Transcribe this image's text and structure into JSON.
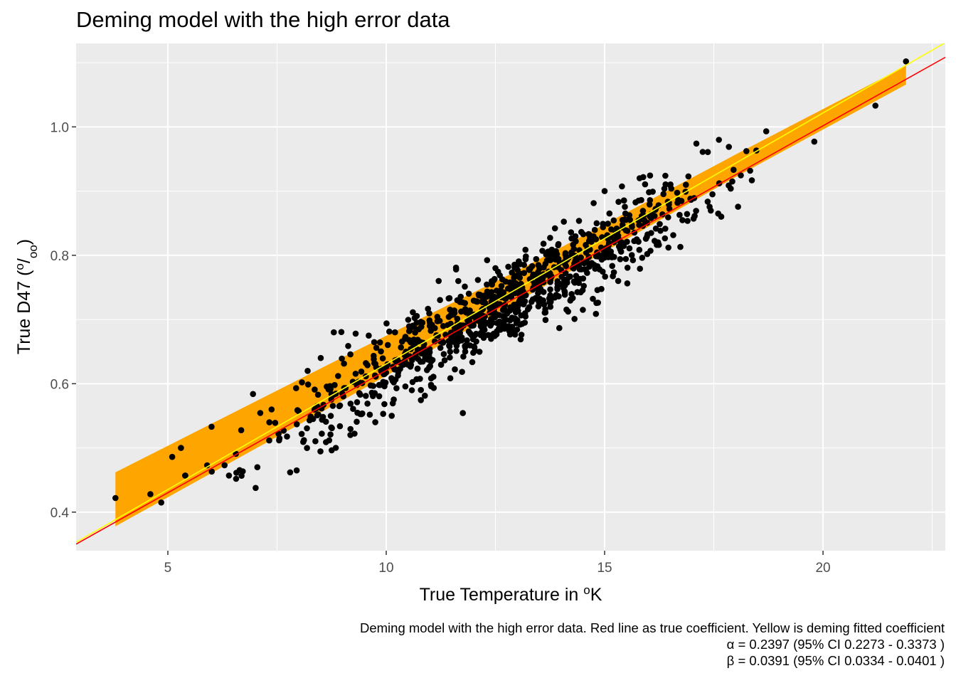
{
  "chart_data": {
    "type": "scatter",
    "title": "Deming model with the high error data",
    "xlabel": "True Temperature in °K",
    "ylabel": "True D47 (°/oo)",
    "xlim": [
      2.9,
      22.8
    ],
    "ylim": [
      0.34,
      1.13
    ],
    "x_ticks": [
      5,
      10,
      15,
      20
    ],
    "y_ticks": [
      0.4,
      0.6,
      0.8,
      1.0
    ],
    "x_tick_labels": [
      "5",
      "10",
      "15",
      "20"
    ],
    "y_tick_labels": [
      "0.4",
      "0.6",
      "0.8",
      "1.0"
    ],
    "grid": true,
    "background": "#ebebeb",
    "points": {
      "name": "",
      "color": "#000000",
      "count": 1000,
      "x_range": [
        3.8,
        21.9
      ],
      "selected_points": [
        {
          "x": 3.8,
          "y": 0.422
        },
        {
          "x": 4.6,
          "y": 0.428
        },
        {
          "x": 4.85,
          "y": 0.415
        },
        {
          "x": 5.1,
          "y": 0.486
        },
        {
          "x": 5.3,
          "y": 0.5
        },
        {
          "x": 5.4,
          "y": 0.457
        },
        {
          "x": 5.9,
          "y": 0.473
        },
        {
          "x": 6.0,
          "y": 0.533
        },
        {
          "x": 6.4,
          "y": 0.457
        },
        {
          "x": 7.05,
          "y": 0.47
        },
        {
          "x": 6.95,
          "y": 0.584
        },
        {
          "x": 7.8,
          "y": 0.462
        },
        {
          "x": 7.95,
          "y": 0.465
        },
        {
          "x": 8.2,
          "y": 0.62
        },
        {
          "x": 8.5,
          "y": 0.64
        },
        {
          "x": 8.8,
          "y": 0.68
        },
        {
          "x": 9.3,
          "y": 0.678
        },
        {
          "x": 9.6,
          "y": 0.675
        },
        {
          "x": 10.2,
          "y": 0.68
        },
        {
          "x": 11.6,
          "y": 0.778
        },
        {
          "x": 11.2,
          "y": 0.76
        },
        {
          "x": 12.5,
          "y": 0.78
        },
        {
          "x": 15.0,
          "y": 0.9
        },
        {
          "x": 15.8,
          "y": 0.92
        },
        {
          "x": 17.1,
          "y": 0.974
        },
        {
          "x": 18.7,
          "y": 0.993
        },
        {
          "x": 19.8,
          "y": 0.977
        },
        {
          "x": 21.2,
          "y": 1.033
        },
        {
          "x": 21.9,
          "y": 1.102
        },
        {
          "x": 17.6,
          "y": 0.865
        },
        {
          "x": 16.2,
          "y": 0.818
        },
        {
          "x": 14.4,
          "y": 0.758
        },
        {
          "x": 12.0,
          "y": 0.675
        }
      ]
    },
    "lines": [
      {
        "name": "",
        "color": "#ff0000",
        "intercept": 0.2397,
        "slope": 0.0381
      },
      {
        "name": "",
        "color": "#ffff00",
        "intercept": 0.2397,
        "slope": 0.0391
      }
    ],
    "ribbon": {
      "color": "#ffa500",
      "x_range": [
        3.8,
        21.9
      ],
      "lower": [
        [
          3.8,
          0.378
        ],
        [
          9.0,
          0.574
        ],
        [
          13.0,
          0.728
        ],
        [
          18.0,
          0.922
        ],
        [
          21.9,
          1.066
        ]
      ],
      "upper": [
        [
          3.8,
          0.462
        ],
        [
          9.0,
          0.641
        ],
        [
          13.0,
          0.776
        ],
        [
          18.0,
          0.957
        ],
        [
          21.9,
          1.095
        ]
      ]
    }
  },
  "caption": {
    "line1": "Deming model with the high error data. Red line as true coefficient. Yellow is deming fitted coefficient",
    "line2": "α = 0.2397 (95% CI 0.2273 - 0.3373 )",
    "line3": "β = 0.0391 (95% CI 0.0334 - 0.0401 )"
  }
}
